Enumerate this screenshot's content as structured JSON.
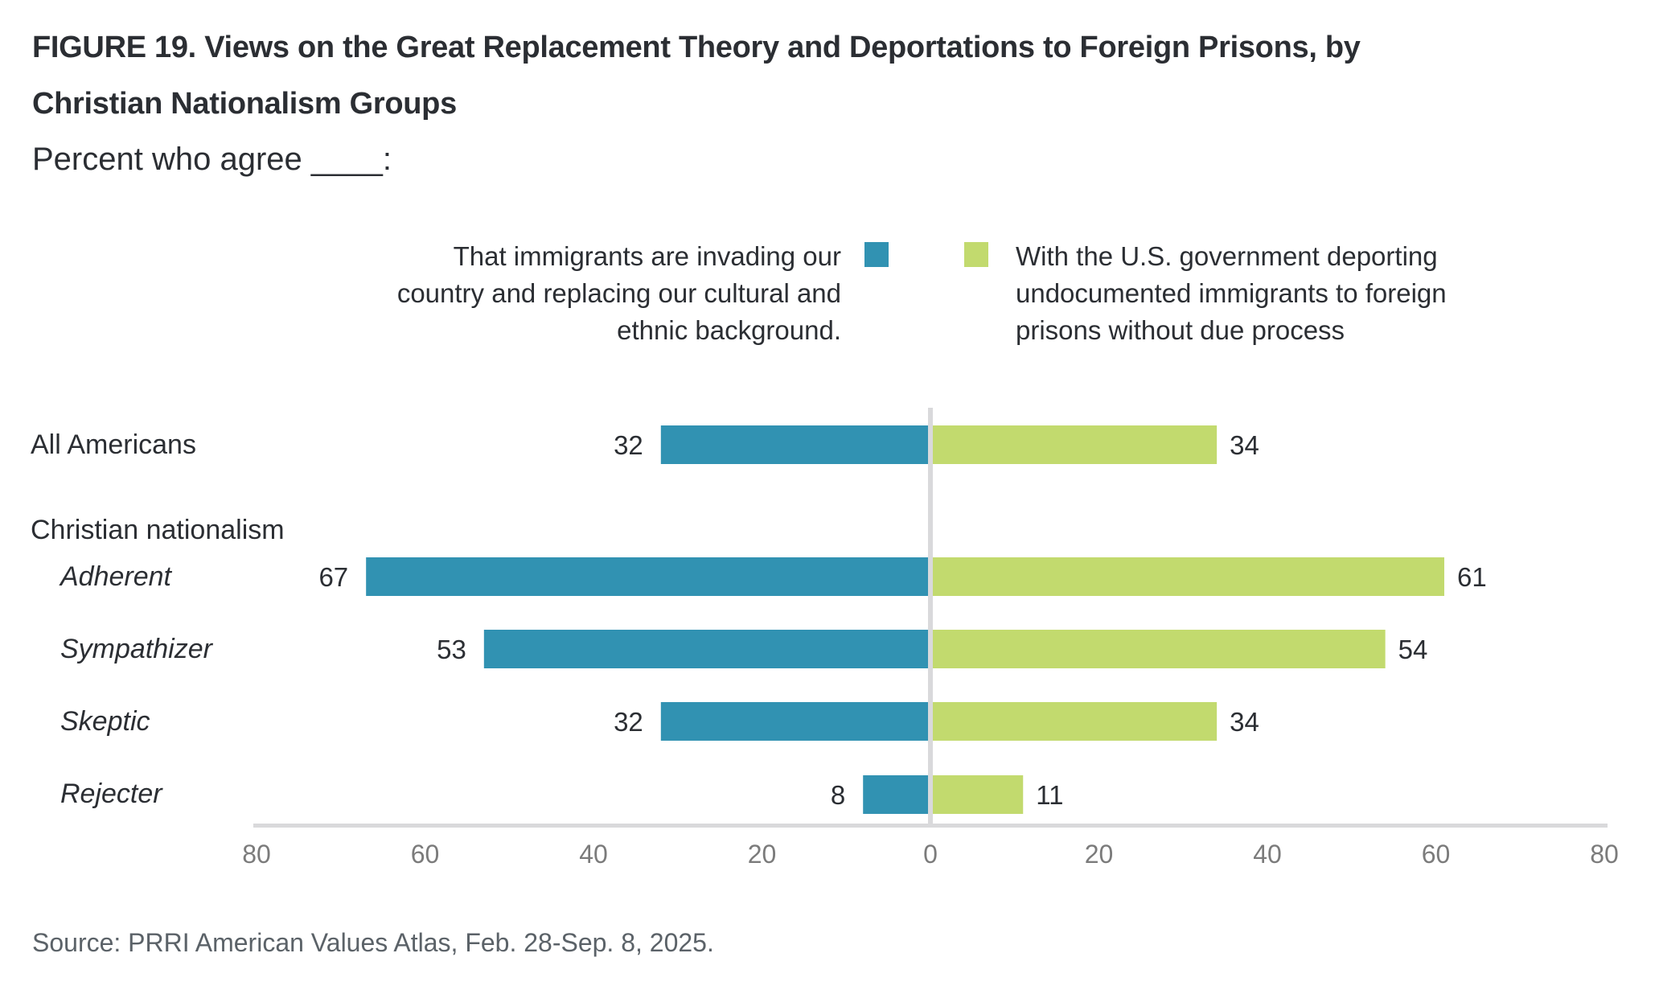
{
  "header": {
    "title_line1": "FIGURE 19.  Views on the Great Replacement Theory and Deportations to Foreign Prisons, by",
    "title_line2": "Christian Nationalism Groups",
    "subtitle": "Percent who agree ____:"
  },
  "legend": {
    "left": {
      "lines": [
        "That immigrants are invading our",
        "country and replacing our cultural and",
        "ethnic background."
      ],
      "color": "#3192b2"
    },
    "right": {
      "lines": [
        "With the U.S. government deporting",
        "undocumented immigrants to foreign",
        "prisons without due process"
      ],
      "color": "#c2da6e"
    }
  },
  "rows": {
    "all_americans": "All Americans",
    "group_header": "Christian nationalism",
    "adherent": "Adherent",
    "sympathizer": "Sympathizer",
    "skeptic": "Skeptic",
    "rejecter": "Rejecter"
  },
  "source": "Source: PRRI American Values Atlas, Feb. 28-Sep. 8, 2025.",
  "chart_data": {
    "type": "bar",
    "orientation": "horizontal-diverging",
    "title": "FIGURE 19.  Views on the Great Replacement Theory and Deportations to Foreign Prisons, by Christian Nationalism Groups",
    "subtitle": "Percent who agree ____:",
    "categories": [
      "All Americans",
      "Adherent",
      "Sympathizer",
      "Skeptic",
      "Rejecter"
    ],
    "category_group": {
      "Christian nationalism": [
        "Adherent",
        "Sympathizer",
        "Skeptic",
        "Rejecter"
      ]
    },
    "series": [
      {
        "name": "That immigrants are invading our country and replacing our cultural and ethnic background.",
        "side": "left",
        "color": "#3192b2",
        "values": [
          32,
          67,
          53,
          32,
          8
        ]
      },
      {
        "name": "With the U.S. government deporting undocumented immigrants to foreign prisons without due process",
        "side": "right",
        "color": "#c2da6e",
        "values": [
          34,
          61,
          54,
          34,
          11
        ]
      }
    ],
    "xlim": [
      -80,
      80
    ],
    "xticks": [
      80,
      60,
      40,
      20,
      0,
      20,
      40,
      60,
      80
    ],
    "xlabel": "",
    "ylabel": "",
    "legend_position": "top-center",
    "grid": false,
    "source": "Source: PRRI American Values Atlas, Feb. 28-Sep. 8, 2025."
  }
}
